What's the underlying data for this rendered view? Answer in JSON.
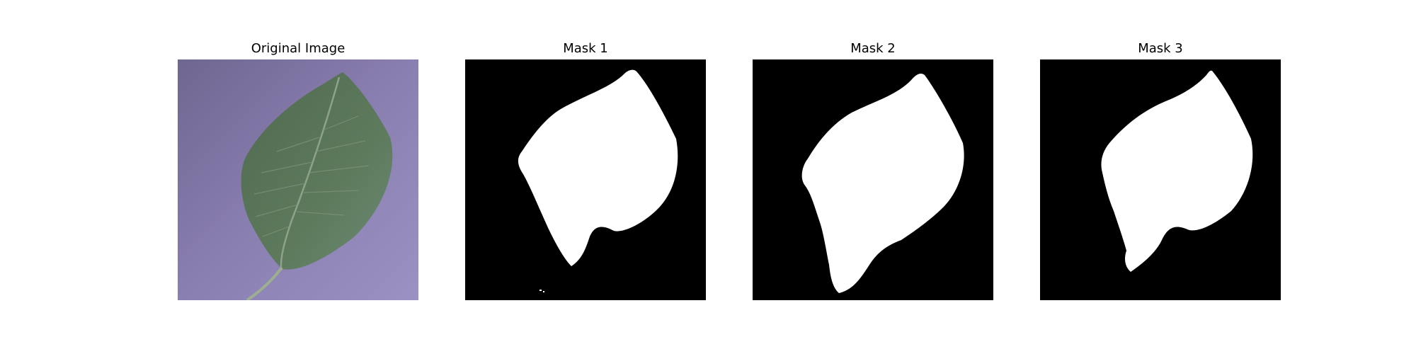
{
  "figure": {
    "panels": [
      {
        "title": "Original Image",
        "kind": "photo"
      },
      {
        "title": "Mask 1",
        "kind": "mask"
      },
      {
        "title": "Mask 2",
        "kind": "mask"
      },
      {
        "title": "Mask 3",
        "kind": "mask"
      }
    ],
    "colors": {
      "background": "#7a6f9e",
      "leaf": "#566f55",
      "mask_background": "#000000",
      "mask_foreground": "#ffffff"
    }
  }
}
